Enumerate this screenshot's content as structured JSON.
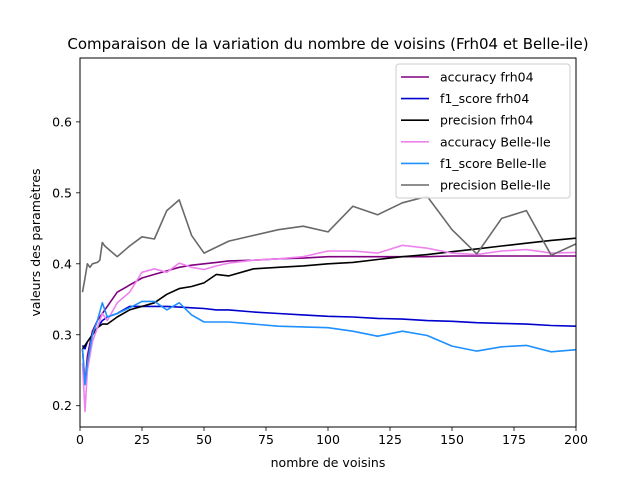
{
  "chart_data": {
    "type": "line",
    "title": "Comparaison de la variation du nombre de voisins (Frh04 et Belle-ile)",
    "xlabel": "nombre de voisins",
    "ylabel": "valeurs des paramètres",
    "xlim": [
      0,
      200
    ],
    "ylim": [
      0.17,
      0.69
    ],
    "xticks": [
      0,
      25,
      50,
      75,
      100,
      125,
      150,
      175,
      200
    ],
    "yticks": [
      0.2,
      0.3,
      0.4,
      0.5,
      0.6
    ],
    "grid": false,
    "legend_position": "top-right",
    "series": [
      {
        "name": "accuracy frh04",
        "color": "#800080",
        "x": [
          1,
          2,
          3,
          5,
          7,
          9,
          11,
          15,
          20,
          25,
          30,
          35,
          40,
          45,
          50,
          55,
          60,
          70,
          80,
          90,
          100,
          110,
          120,
          130,
          140,
          150,
          160,
          170,
          180,
          190,
          200
        ],
        "y": [
          0.28,
          0.23,
          0.27,
          0.305,
          0.32,
          0.33,
          0.34,
          0.36,
          0.37,
          0.38,
          0.385,
          0.39,
          0.395,
          0.398,
          0.4,
          0.402,
          0.404,
          0.405,
          0.407,
          0.408,
          0.41,
          0.41,
          0.41,
          0.41,
          0.41,
          0.411,
          0.411,
          0.411,
          0.411,
          0.411,
          0.411
        ]
      },
      {
        "name": "f1_score frh04",
        "color": "#0000cd",
        "x": [
          1,
          2,
          3,
          5,
          7,
          9,
          11,
          15,
          20,
          25,
          30,
          35,
          40,
          45,
          50,
          55,
          60,
          70,
          80,
          90,
          100,
          110,
          120,
          130,
          140,
          150,
          160,
          170,
          180,
          190,
          200
        ],
        "y": [
          0.285,
          0.28,
          0.29,
          0.3,
          0.31,
          0.32,
          0.325,
          0.33,
          0.34,
          0.34,
          0.34,
          0.34,
          0.339,
          0.338,
          0.337,
          0.335,
          0.335,
          0.332,
          0.33,
          0.328,
          0.326,
          0.325,
          0.323,
          0.322,
          0.32,
          0.319,
          0.317,
          0.316,
          0.315,
          0.313,
          0.312
        ]
      },
      {
        "name": "precision frh04",
        "color": "#000000",
        "x": [
          1,
          2,
          3,
          5,
          7,
          9,
          11,
          15,
          20,
          25,
          30,
          35,
          40,
          45,
          50,
          55,
          60,
          70,
          80,
          90,
          100,
          110,
          120,
          130,
          140,
          150,
          160,
          170,
          180,
          190,
          200
        ],
        "y": [
          0.28,
          0.285,
          0.29,
          0.3,
          0.31,
          0.315,
          0.315,
          0.325,
          0.335,
          0.34,
          0.345,
          0.357,
          0.365,
          0.368,
          0.373,
          0.385,
          0.383,
          0.393,
          0.395,
          0.397,
          0.4,
          0.402,
          0.406,
          0.41,
          0.413,
          0.417,
          0.421,
          0.425,
          0.429,
          0.433,
          0.436
        ]
      },
      {
        "name": "accuracy Belle-Ile",
        "color": "#ee82ee",
        "x": [
          1,
          2,
          3,
          5,
          7,
          9,
          11,
          15,
          20,
          25,
          30,
          35,
          40,
          45,
          50,
          55,
          60,
          70,
          80,
          90,
          100,
          110,
          120,
          130,
          140,
          150,
          160,
          170,
          180,
          190,
          200
        ],
        "y": [
          0.26,
          0.192,
          0.25,
          0.29,
          0.31,
          0.33,
          0.32,
          0.345,
          0.36,
          0.388,
          0.393,
          0.388,
          0.401,
          0.395,
          0.392,
          0.397,
          0.401,
          0.405,
          0.407,
          0.41,
          0.418,
          0.418,
          0.415,
          0.426,
          0.422,
          0.415,
          0.413,
          0.418,
          0.42,
          0.415,
          0.416
        ]
      },
      {
        "name": "f1_score Belle-Ile",
        "color": "#1e90ff",
        "x": [
          1,
          2,
          3,
          5,
          7,
          9,
          11,
          15,
          20,
          25,
          30,
          35,
          40,
          45,
          50,
          55,
          60,
          70,
          80,
          90,
          100,
          110,
          120,
          130,
          140,
          150,
          160,
          170,
          180,
          190,
          200
        ],
        "y": [
          0.28,
          0.23,
          0.26,
          0.3,
          0.32,
          0.345,
          0.325,
          0.33,
          0.338,
          0.347,
          0.347,
          0.335,
          0.345,
          0.328,
          0.318,
          0.318,
          0.318,
          0.315,
          0.312,
          0.311,
          0.31,
          0.305,
          0.298,
          0.305,
          0.299,
          0.284,
          0.277,
          0.283,
          0.285,
          0.276,
          0.279
        ]
      },
      {
        "name": "precision Belle-Ile",
        "color": "#696969",
        "x": [
          1,
          2,
          3,
          4,
          5,
          7,
          8,
          9,
          10,
          15,
          20,
          25,
          30,
          35,
          40,
          45,
          50,
          60,
          80,
          90,
          100,
          110,
          120,
          130,
          140,
          150,
          160,
          170,
          180,
          190,
          200
        ],
        "y": [
          0.36,
          0.38,
          0.4,
          0.395,
          0.4,
          0.402,
          0.405,
          0.43,
          0.425,
          0.41,
          0.425,
          0.438,
          0.435,
          0.475,
          0.49,
          0.44,
          0.415,
          0.432,
          0.448,
          0.453,
          0.445,
          0.481,
          0.469,
          0.486,
          0.495,
          0.448,
          0.414,
          0.464,
          0.475,
          0.412,
          0.428
        ]
      }
    ]
  }
}
